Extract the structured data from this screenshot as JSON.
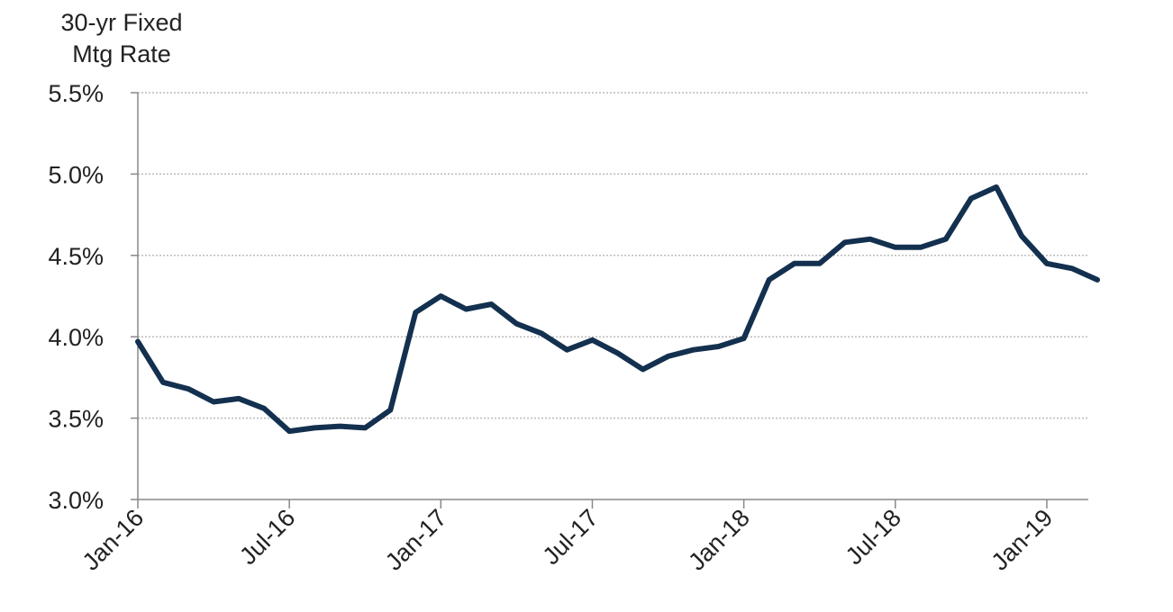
{
  "chart_data": {
    "type": "line",
    "y_axis_label": [
      "30-yr Fixed",
      "Mtg Rate"
    ],
    "x": [
      "2016-01",
      "2016-02",
      "2016-03",
      "2016-04",
      "2016-05",
      "2016-06",
      "2016-07",
      "2016-08",
      "2016-09",
      "2016-10",
      "2016-11",
      "2016-12",
      "2017-01",
      "2017-02",
      "2017-03",
      "2017-04",
      "2017-05",
      "2017-06",
      "2017-07",
      "2017-08",
      "2017-09",
      "2017-10",
      "2017-11",
      "2017-12",
      "2018-01",
      "2018-02",
      "2018-03",
      "2018-04",
      "2018-05",
      "2018-06",
      "2018-07",
      "2018-08",
      "2018-09",
      "2018-10",
      "2018-11",
      "2018-12",
      "2019-01",
      "2019-02",
      "2019-03"
    ],
    "series": [
      {
        "color": "#13304f",
        "values": [
          3.97,
          3.72,
          3.68,
          3.6,
          3.62,
          3.56,
          3.42,
          3.44,
          3.45,
          3.44,
          3.55,
          4.15,
          4.25,
          4.17,
          4.2,
          4.08,
          4.02,
          3.92,
          3.98,
          3.9,
          3.8,
          3.88,
          3.92,
          3.94,
          3.99,
          4.35,
          4.45,
          4.45,
          4.58,
          4.6,
          4.55,
          4.55,
          4.6,
          4.85,
          4.92,
          4.62,
          4.45,
          4.42,
          4.35
        ]
      }
    ],
    "xlim": [
      "2016-01",
      "2019-03"
    ],
    "xticks": [
      {
        "value": "2016-01",
        "label": "Jan-16"
      },
      {
        "value": "2016-07",
        "label": "Jul-16"
      },
      {
        "value": "2017-01",
        "label": "Jan-17"
      },
      {
        "value": "2017-07",
        "label": "Jul-17"
      },
      {
        "value": "2018-01",
        "label": "Jan-18"
      },
      {
        "value": "2018-07",
        "label": "Jul-18"
      },
      {
        "value": "2019-01",
        "label": "Jan-19"
      }
    ],
    "ylim": [
      3.0,
      5.5
    ],
    "yticks": [
      {
        "value": 3.0,
        "label": "3.0%"
      },
      {
        "value": 3.5,
        "label": "3.5%"
      },
      {
        "value": 4.0,
        "label": "4.0%"
      },
      {
        "value": 4.5,
        "label": "4.5%"
      },
      {
        "value": 5.0,
        "label": "5.0%"
      },
      {
        "value": 5.5,
        "label": "5.5%"
      }
    ],
    "grid": true
  }
}
